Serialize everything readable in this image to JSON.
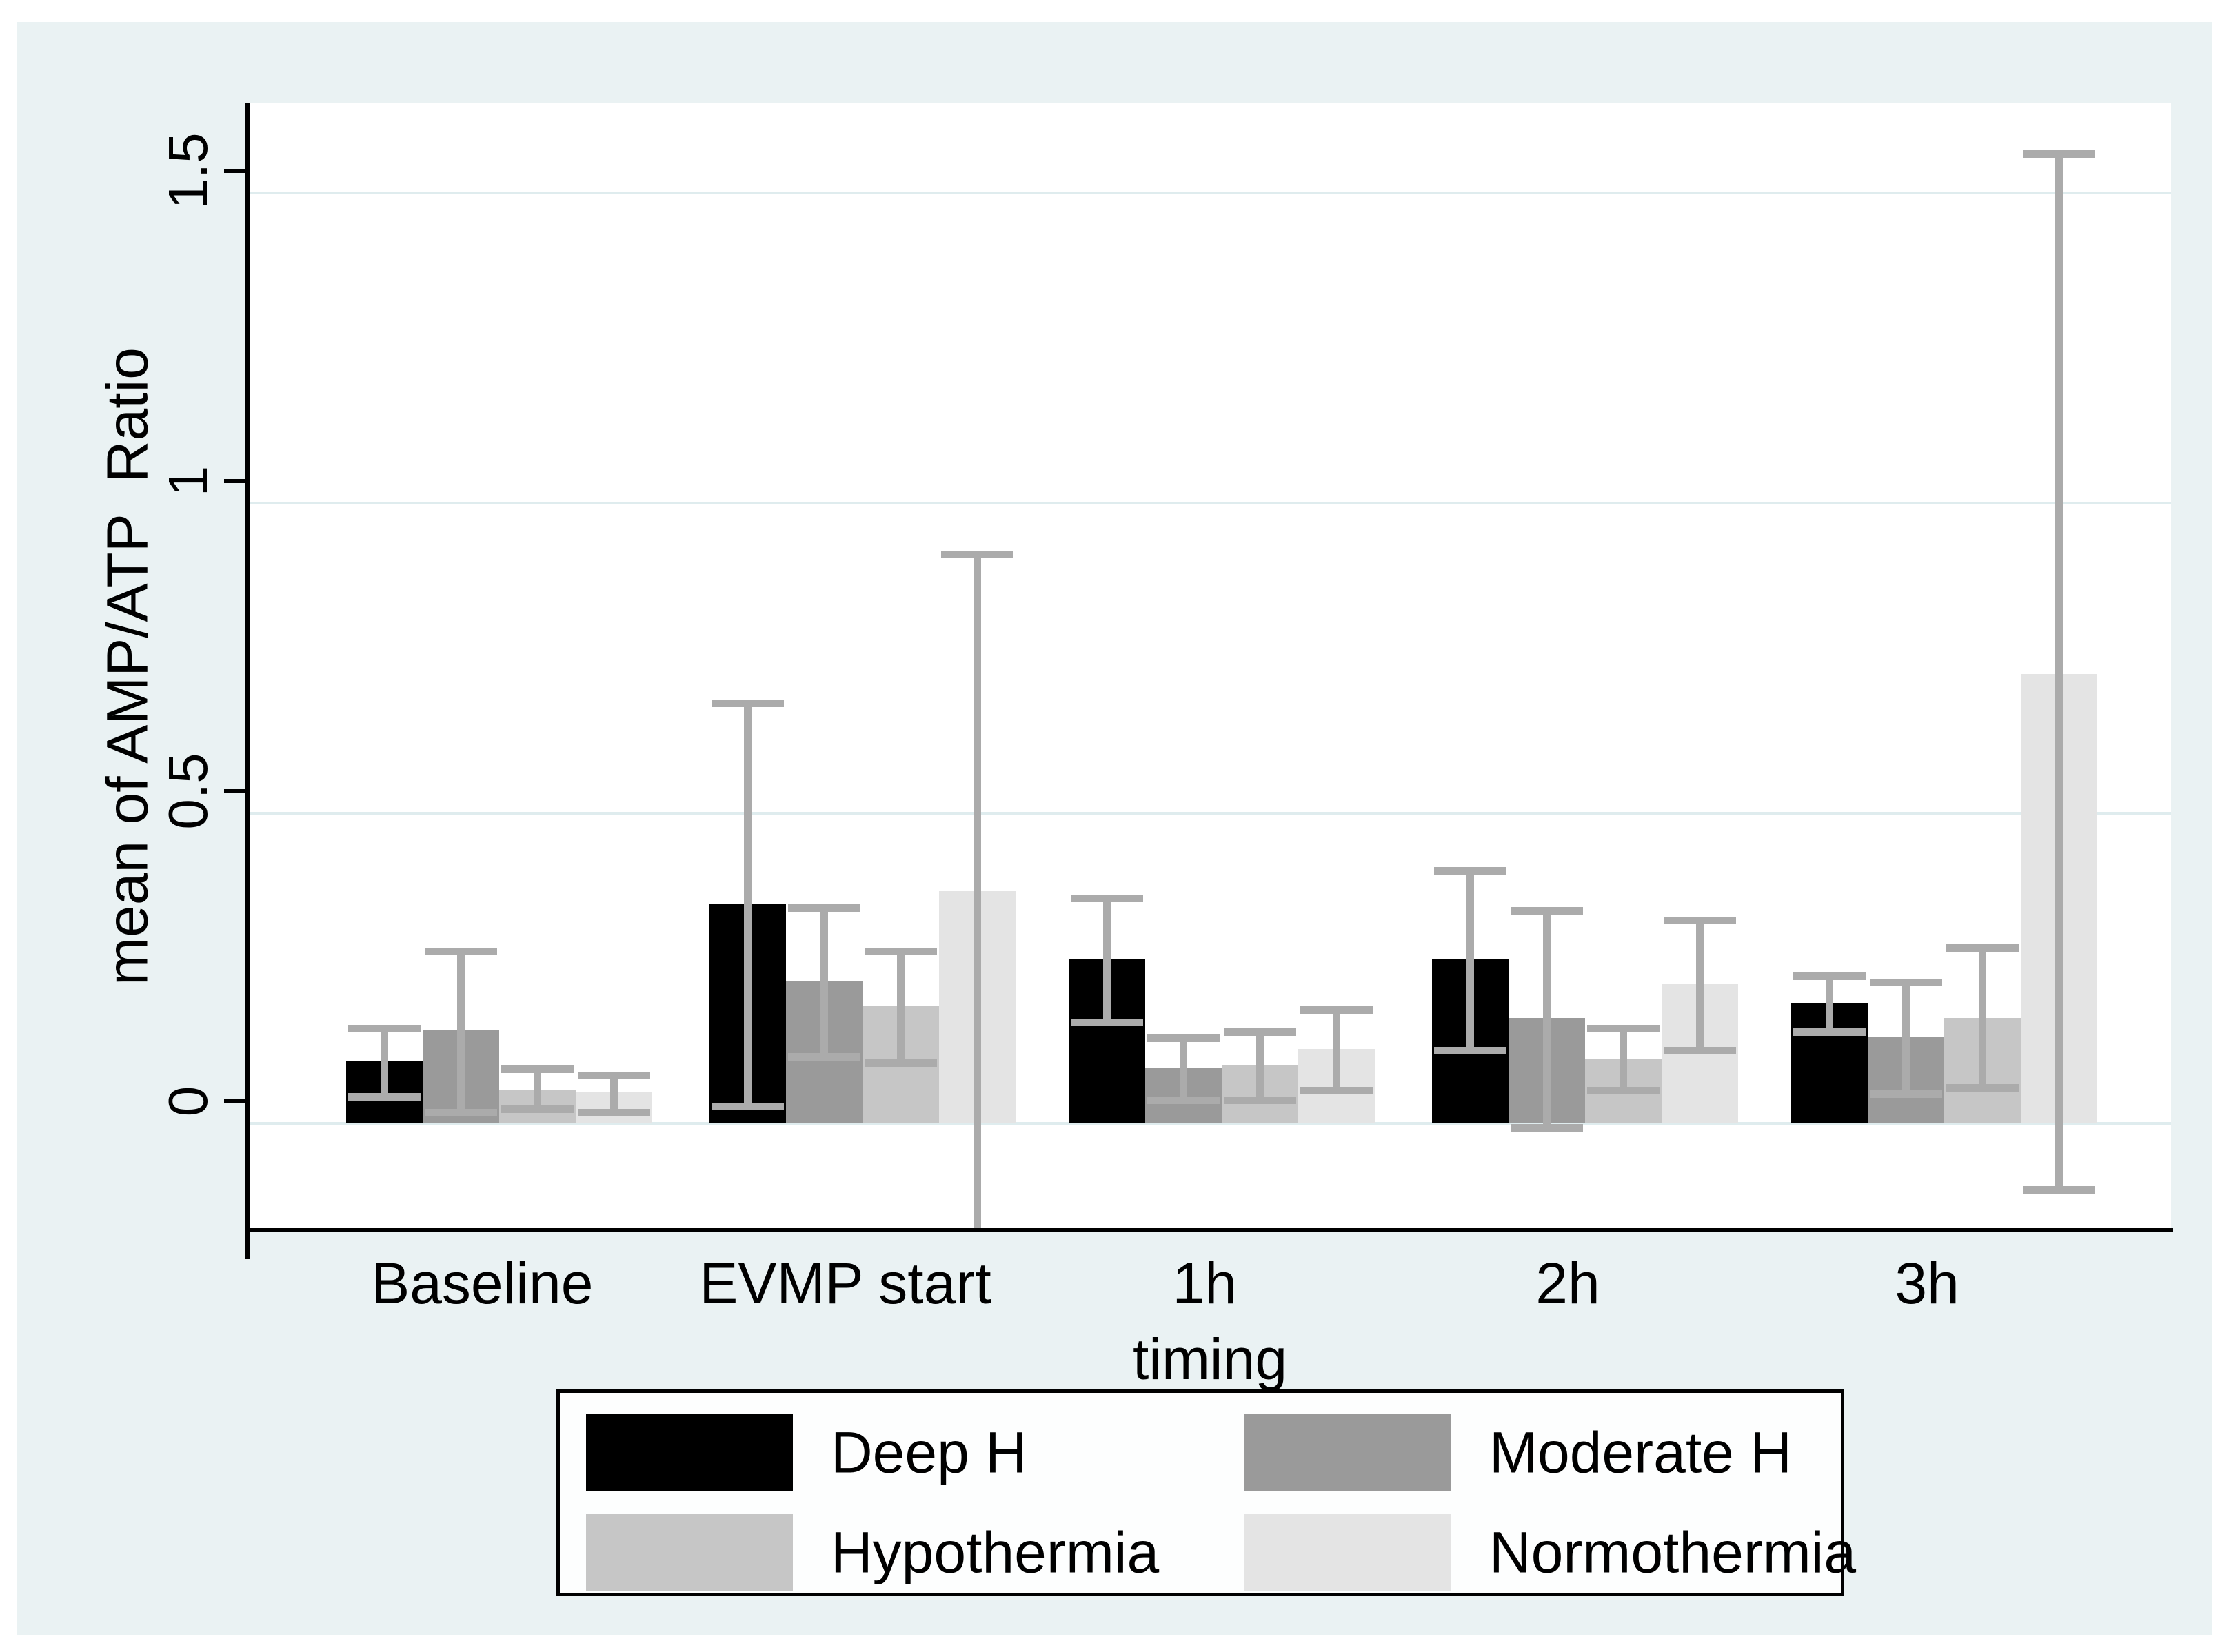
{
  "figure": {
    "page_background": "#ffffff",
    "graph_region_color": "#eaf2f3",
    "plot_background": "#ffffff",
    "grid_color": "#dfecee",
    "axis_color": "#000000",
    "error_bar_color": "#ababab",
    "legend_background": "#fdfefe",
    "legend_border_color": "#000000"
  },
  "chart_data": {
    "type": "bar",
    "title": "",
    "xlabel": "timing",
    "ylabel": "mean of AMP/ATP  Ratio",
    "categories": [
      "Baseline",
      "EVMP start",
      "1h",
      "2h",
      "3h"
    ],
    "y_ticks": [
      0,
      0.5,
      1,
      1.5
    ],
    "y_tick_labels": [
      "0",
      "0.5",
      "1",
      "1.5"
    ],
    "ylim": [
      -0.172,
      1.645
    ],
    "grid": true,
    "legend_position": "bottom",
    "error_bars": "cap style, symmetric about bar mean",
    "series": [
      {
        "name": "Deep H",
        "color": "#000000",
        "means": [
          0.1,
          0.355,
          0.265,
          0.265,
          0.195
        ],
        "error_low": [
          0.045,
          0.03,
          0.165,
          0.12,
          0.15
        ],
        "error_high": [
          0.155,
          0.68,
          0.365,
          0.41,
          0.24
        ],
        "low_cap_drawn": [
          true,
          true,
          true,
          true,
          true
        ]
      },
      {
        "name": "Moderate H",
        "color": "#9a9a9a",
        "means": [
          0.15,
          0.23,
          0.09,
          0.17,
          0.14
        ],
        "error_low": [
          0.02,
          0.11,
          0.04,
          -0.005,
          0.05
        ],
        "error_high": [
          0.28,
          0.35,
          0.14,
          0.345,
          0.23
        ],
        "low_cap_drawn": [
          true,
          true,
          true,
          true,
          true
        ]
      },
      {
        "name": "Hypothermia",
        "color": "#c6c6c6",
        "means": [
          0.055,
          0.19,
          0.095,
          0.105,
          0.17
        ],
        "error_low": [
          0.025,
          0.1,
          0.04,
          0.055,
          0.06
        ],
        "error_high": [
          0.09,
          0.28,
          0.15,
          0.155,
          0.285
        ],
        "low_cap_drawn": [
          true,
          true,
          true,
          true,
          true
        ]
      },
      {
        "name": "Normothermia",
        "color": "#e4e4e4",
        "means": [
          0.05,
          0.375,
          0.12,
          0.225,
          0.725
        ],
        "error_low": [
          0.02,
          -0.25,
          0.055,
          0.12,
          -0.105
        ],
        "error_high": [
          0.08,
          0.92,
          0.185,
          0.33,
          1.565
        ],
        "low_cap_drawn": [
          true,
          false,
          true,
          true,
          true
        ]
      }
    ]
  },
  "legend": {
    "items": [
      {
        "label": "Deep H",
        "color": "#000000"
      },
      {
        "label": "Moderate H",
        "color": "#9a9a9a"
      },
      {
        "label": "Hypothermia",
        "color": "#c6c6c6"
      },
      {
        "label": "Normothermia",
        "color": "#e4e4e4"
      }
    ]
  }
}
